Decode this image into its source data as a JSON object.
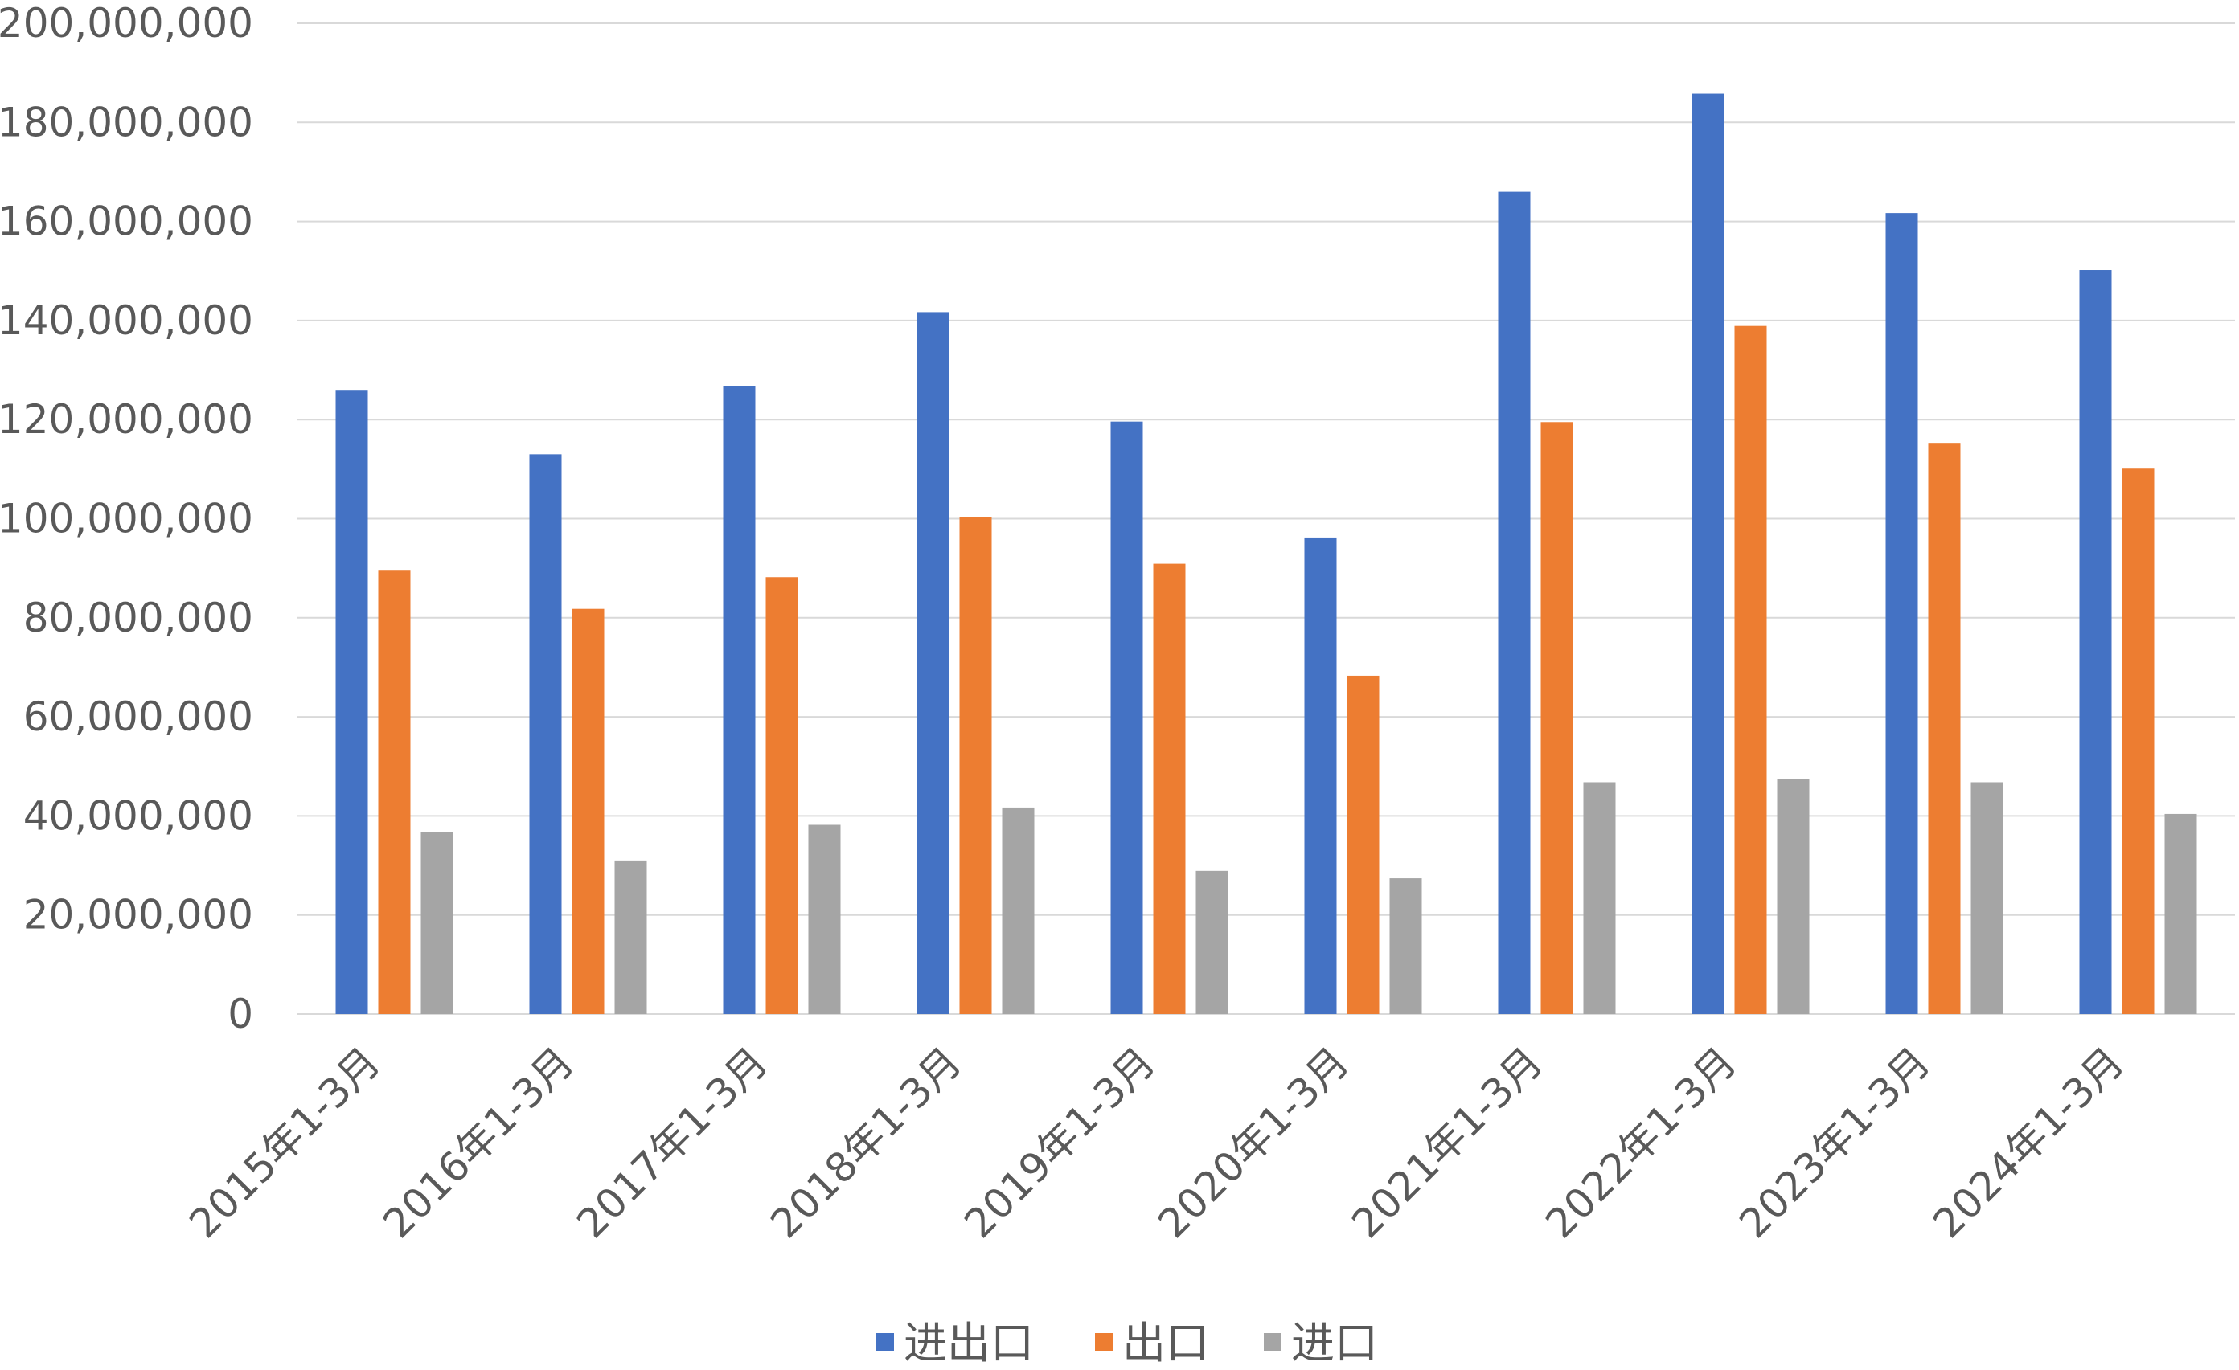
{
  "chart_data": {
    "type": "bar",
    "title": "",
    "xlabel": "",
    "ylabel": "",
    "categories": [
      "2015年1-3月",
      "2016年1-3月",
      "2017年1-3月",
      "2018年1-3月",
      "2019年1-3月",
      "2020年1-3月",
      "2021年1-3月",
      "2022年1-3月",
      "2023年1-3月",
      "2024年1-3月"
    ],
    "series": [
      {
        "name": "进出口",
        "color": "#4472C4",
        "values": [
          126000000,
          113000000,
          126800000,
          141700000,
          119600000,
          96200000,
          166000000,
          185800000,
          161700000,
          150200000
        ]
      },
      {
        "name": "出口",
        "color": "#ED7D31",
        "values": [
          89500000,
          81800000,
          88200000,
          100300000,
          90900000,
          68300000,
          119500000,
          138900000,
          115300000,
          110100000
        ]
      },
      {
        "name": "进口",
        "color": "#A5A5A5",
        "values": [
          36700000,
          31000000,
          38200000,
          41700000,
          28900000,
          27400000,
          46800000,
          47400000,
          46800000,
          40400000
        ]
      }
    ],
    "ylim": [
      0,
      200000000
    ],
    "yticks": [
      0,
      20000000,
      40000000,
      60000000,
      80000000,
      100000000,
      120000000,
      140000000,
      160000000,
      180000000,
      200000000
    ],
    "ytick_labels": [
      "0",
      "20,000,000",
      "40,000,000",
      "60,000,000",
      "80,000,000",
      "100,000,000",
      "120,000,000",
      "140,000,000",
      "160,000,000",
      "180,000,000",
      "200,000,000"
    ],
    "grid": true,
    "legend_position": "bottom-center"
  }
}
